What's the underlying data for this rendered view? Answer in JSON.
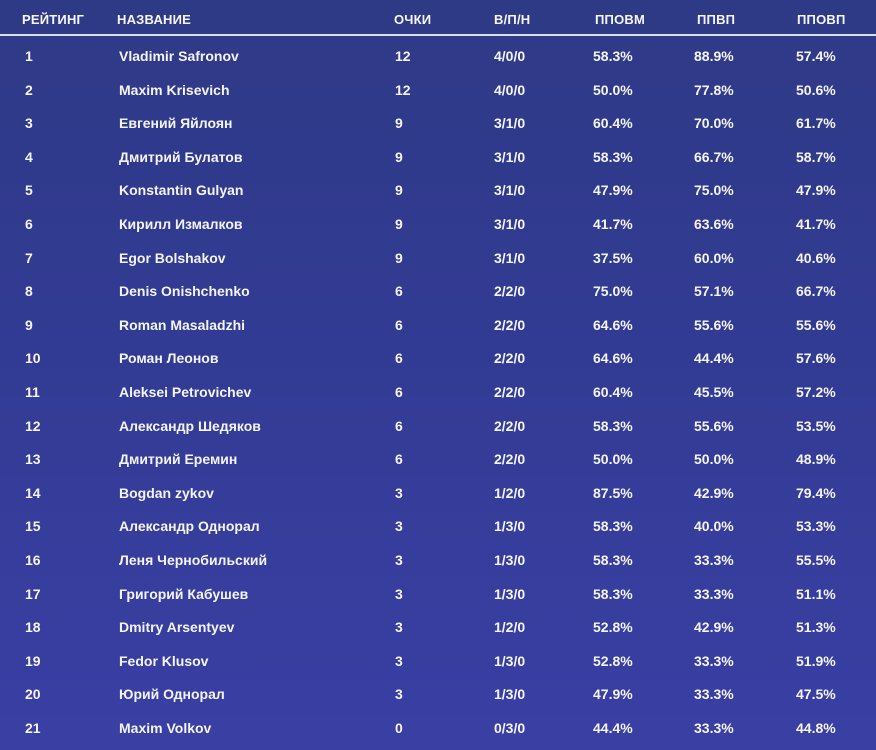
{
  "table": {
    "headers": {
      "rank": "РЕЙТИНГ",
      "name": "НАЗВАНИЕ",
      "points": "ОЧКИ",
      "wld": "В/П/Н",
      "m1": "ППОВМ",
      "m2": "ППВП",
      "m3": "ППОВП"
    },
    "rows": [
      {
        "rank": "1",
        "name": "Vladimir Safronov",
        "points": "12",
        "wld": "4/0/0",
        "m1": "58.3%",
        "m2": "88.9%",
        "m3": "57.4%"
      },
      {
        "rank": "2",
        "name": "Maxim Krisevich",
        "points": "12",
        "wld": "4/0/0",
        "m1": "50.0%",
        "m2": "77.8%",
        "m3": "50.6%"
      },
      {
        "rank": "3",
        "name": "Евгений Яйлоян",
        "points": "9",
        "wld": "3/1/0",
        "m1": "60.4%",
        "m2": "70.0%",
        "m3": "61.7%"
      },
      {
        "rank": "4",
        "name": "Дмитрий Булатов",
        "points": "9",
        "wld": "3/1/0",
        "m1": "58.3%",
        "m2": "66.7%",
        "m3": "58.7%"
      },
      {
        "rank": "5",
        "name": "Konstantin Gulyan",
        "points": "9",
        "wld": "3/1/0",
        "m1": "47.9%",
        "m2": "75.0%",
        "m3": "47.9%"
      },
      {
        "rank": "6",
        "name": "Кирилл Измалков",
        "points": "9",
        "wld": "3/1/0",
        "m1": "41.7%",
        "m2": "63.6%",
        "m3": "41.7%"
      },
      {
        "rank": "7",
        "name": "Egor Bolshakov",
        "points": "9",
        "wld": "3/1/0",
        "m1": "37.5%",
        "m2": "60.0%",
        "m3": "40.6%"
      },
      {
        "rank": "8",
        "name": "Denis Onishchenko",
        "points": "6",
        "wld": "2/2/0",
        "m1": "75.0%",
        "m2": "57.1%",
        "m3": "66.7%"
      },
      {
        "rank": "9",
        "name": "Roman Masaladzhi",
        "points": "6",
        "wld": "2/2/0",
        "m1": "64.6%",
        "m2": "55.6%",
        "m3": "55.6%"
      },
      {
        "rank": "10",
        "name": "Роман Леонов",
        "points": "6",
        "wld": "2/2/0",
        "m1": "64.6%",
        "m2": "44.4%",
        "m3": "57.6%"
      },
      {
        "rank": "11",
        "name": "Aleksei Petrovichev",
        "points": "6",
        "wld": "2/2/0",
        "m1": "60.4%",
        "m2": "45.5%",
        "m3": "57.2%"
      },
      {
        "rank": "12",
        "name": "Александр Шедяков",
        "points": "6",
        "wld": "2/2/0",
        "m1": "58.3%",
        "m2": "55.6%",
        "m3": "53.5%"
      },
      {
        "rank": "13",
        "name": "Дмитрий Еремин",
        "points": "6",
        "wld": "2/2/0",
        "m1": "50.0%",
        "m2": "50.0%",
        "m3": "48.9%"
      },
      {
        "rank": "14",
        "name": "Bogdan zykov",
        "points": "3",
        "wld": "1/2/0",
        "m1": "87.5%",
        "m2": "42.9%",
        "m3": "79.4%"
      },
      {
        "rank": "15",
        "name": "Александр Однорал",
        "points": "3",
        "wld": "1/3/0",
        "m1": "58.3%",
        "m2": "40.0%",
        "m3": "53.3%"
      },
      {
        "rank": "16",
        "name": "Леня Чернобильский",
        "points": "3",
        "wld": "1/3/0",
        "m1": "58.3%",
        "m2": "33.3%",
        "m3": "55.5%"
      },
      {
        "rank": "17",
        "name": "Григорий Кабушев",
        "points": "3",
        "wld": "1/3/0",
        "m1": "58.3%",
        "m2": "33.3%",
        "m3": "51.1%"
      },
      {
        "rank": "18",
        "name": "Dmitry Arsentyev",
        "points": "3",
        "wld": "1/2/0",
        "m1": "52.8%",
        "m2": "42.9%",
        "m3": "51.3%"
      },
      {
        "rank": "19",
        "name": "Fedor Klusov",
        "points": "3",
        "wld": "1/3/0",
        "m1": "52.8%",
        "m2": "33.3%",
        "m3": "51.9%"
      },
      {
        "rank": "20",
        "name": "Юрий Однорал",
        "points": "3",
        "wld": "1/3/0",
        "m1": "47.9%",
        "m2": "33.3%",
        "m3": "47.5%"
      },
      {
        "rank": "21",
        "name": "Maxim Volkov",
        "points": "0",
        "wld": "0/3/0",
        "m1": "44.4%",
        "m2": "33.3%",
        "m3": "44.8%"
      }
    ]
  }
}
